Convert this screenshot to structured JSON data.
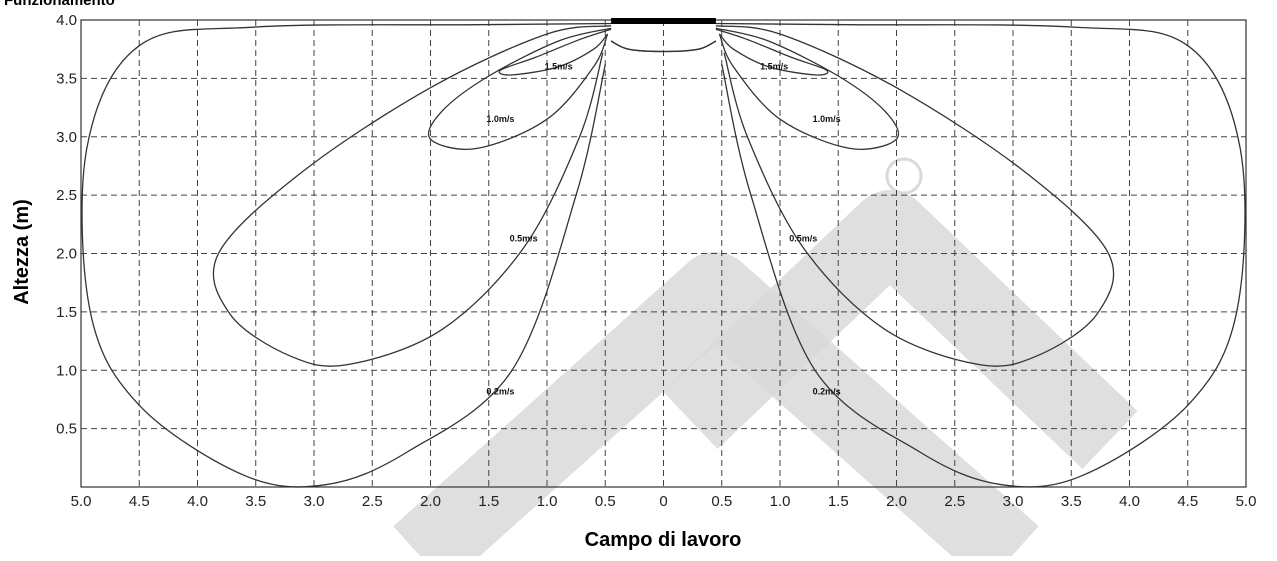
{
  "chart_data": {
    "type": "line",
    "title": "Funzionamento",
    "xlabel": "Campo di lavoro",
    "ylabel": "Altezza (m)",
    "xlim": [
      -5,
      5
    ],
    "ylim": [
      0,
      4
    ],
    "x_ticks": [
      -5,
      -4.5,
      -4,
      -3.5,
      -3,
      -2.5,
      -2,
      -1.5,
      -1,
      -0.5,
      0,
      0.5,
      1,
      1.5,
      2,
      2.5,
      3,
      3.5,
      4,
      4.5,
      5
    ],
    "x_tick_labels": [
      "5.0",
      "4.5",
      "4.0",
      "3.5",
      "3.0",
      "2.5",
      "2.0",
      "1.5",
      "1.0",
      "0.5",
      "0",
      "0.5",
      "1.0",
      "1.5",
      "2.0",
      "2.5",
      "3.0",
      "3.5",
      "4.0",
      "4.5",
      "5.0"
    ],
    "y_ticks": [
      0.5,
      1.0,
      1.5,
      2.0,
      2.5,
      3.0,
      3.5,
      4.0
    ],
    "y_tick_labels": [
      "0.5",
      "1.0",
      "1.5",
      "2.0",
      "2.5",
      "3.0",
      "3.5",
      "4.0"
    ],
    "grid": true,
    "grid_style": "dashed",
    "outlet": {
      "x": [
        -0.45,
        0.45
      ],
      "y": 4.0,
      "color": "#000000"
    },
    "line_color": "#333333",
    "watermark_color": "#d6d6d6",
    "series": [
      {
        "name": "1.5m/s",
        "label_positions": [
          [
            -0.9,
            3.6
          ],
          [
            0.95,
            3.6
          ]
        ],
        "points": [
          [
            -0.45,
            3.92
          ],
          [
            -0.7,
            3.84
          ],
          [
            -1.1,
            3.68
          ],
          [
            -1.4,
            3.57
          ],
          [
            -1.3,
            3.53
          ],
          [
            -0.9,
            3.6
          ],
          [
            -0.6,
            3.75
          ],
          [
            -0.48,
            3.88
          ]
        ]
      },
      {
        "name": "1.0m/s",
        "label_positions": [
          [
            -1.4,
            3.15
          ],
          [
            1.4,
            3.15
          ]
        ],
        "points": [
          [
            -0.45,
            3.93
          ],
          [
            -0.9,
            3.82
          ],
          [
            -1.5,
            3.52
          ],
          [
            -1.9,
            3.22
          ],
          [
            -2.0,
            2.98
          ],
          [
            -1.6,
            2.9
          ],
          [
            -1.0,
            3.15
          ],
          [
            -0.6,
            3.6
          ],
          [
            -0.48,
            3.88
          ]
        ]
      },
      {
        "name": "0.5m/s",
        "label_positions": [
          [
            -1.2,
            2.13
          ],
          [
            1.2,
            2.13
          ]
        ],
        "points": [
          [
            -0.45,
            3.95
          ],
          [
            -1.0,
            3.88
          ],
          [
            -2.0,
            3.42
          ],
          [
            -3.1,
            2.7
          ],
          [
            -3.82,
            2.0
          ],
          [
            -3.72,
            1.48
          ],
          [
            -3.2,
            1.12
          ],
          [
            -2.7,
            1.05
          ],
          [
            -1.9,
            1.35
          ],
          [
            -1.2,
            2.05
          ],
          [
            -0.72,
            3.0
          ],
          [
            -0.52,
            3.72
          ]
        ]
      },
      {
        "name": "0.2m/s",
        "label_positions": [
          [
            -1.4,
            0.82
          ],
          [
            1.4,
            0.82
          ]
        ],
        "points": [
          [
            -0.45,
            3.97
          ],
          [
            -1.6,
            3.96
          ],
          [
            -3.5,
            3.94
          ],
          [
            -4.5,
            3.78
          ],
          [
            -4.95,
            2.9
          ],
          [
            -4.92,
            1.5
          ],
          [
            -4.5,
            0.7
          ],
          [
            -3.6,
            0.1
          ],
          [
            -2.9,
            0.02
          ],
          [
            -2.2,
            0.3
          ],
          [
            -1.3,
            1.0
          ],
          [
            -0.75,
            2.5
          ],
          [
            -0.5,
            3.62
          ]
        ]
      },
      {
        "name": "",
        "label_positions": [],
        "points": [
          [
            -0.45,
            3.82
          ],
          [
            -0.3,
            3.75
          ],
          [
            0.0,
            3.73
          ],
          [
            0.3,
            3.75
          ],
          [
            0.45,
            3.82
          ]
        ]
      }
    ]
  }
}
